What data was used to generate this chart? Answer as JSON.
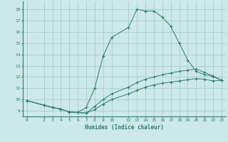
{
  "title": "",
  "xlabel": "Humidex (Indice chaleur)",
  "background_color": "#cce8e8",
  "grid_color": "#aacccc",
  "line_color": "#2e7d6e",
  "x_ticks": [
    0,
    2,
    3,
    4,
    5,
    6,
    7,
    8,
    9,
    10,
    12,
    13,
    14,
    15,
    16,
    17,
    18,
    19,
    20,
    21,
    22,
    23
  ],
  "xlim": [
    -0.5,
    23.5
  ],
  "ylim": [
    8.5,
    18.7
  ],
  "y_ticks": [
    9,
    10,
    11,
    12,
    13,
    14,
    15,
    16,
    17,
    18
  ],
  "curves": [
    {
      "x": [
        0,
        2,
        3,
        4,
        5,
        6,
        7,
        8,
        9,
        10,
        12,
        13,
        14,
        15,
        16,
        17,
        18,
        19,
        20,
        21,
        22,
        23
      ],
      "y": [
        9.9,
        9.5,
        9.3,
        9.15,
        8.9,
        8.85,
        9.3,
        11.0,
        13.85,
        15.5,
        16.4,
        18.0,
        17.85,
        17.85,
        17.3,
        16.5,
        15.0,
        13.5,
        12.5,
        12.2,
        12.05,
        11.7
      ]
    },
    {
      "x": [
        0,
        2,
        3,
        4,
        5,
        6,
        7,
        8,
        9,
        10,
        12,
        13,
        14,
        15,
        16,
        17,
        18,
        19,
        20,
        21,
        22,
        23
      ],
      "y": [
        9.9,
        9.5,
        9.3,
        9.15,
        8.9,
        8.85,
        8.8,
        9.4,
        10.0,
        10.5,
        11.1,
        11.5,
        11.8,
        12.0,
        12.2,
        12.35,
        12.5,
        12.6,
        12.7,
        12.4,
        12.1,
        11.7
      ]
    },
    {
      "x": [
        0,
        2,
        3,
        4,
        5,
        6,
        7,
        8,
        9,
        10,
        12,
        13,
        14,
        15,
        16,
        17,
        18,
        19,
        20,
        21,
        22,
        23
      ],
      "y": [
        9.9,
        9.5,
        9.3,
        9.15,
        8.9,
        8.85,
        8.8,
        9.1,
        9.6,
        10.0,
        10.5,
        10.8,
        11.1,
        11.3,
        11.45,
        11.55,
        11.65,
        11.75,
        11.85,
        11.8,
        11.65,
        11.7
      ]
    }
  ]
}
